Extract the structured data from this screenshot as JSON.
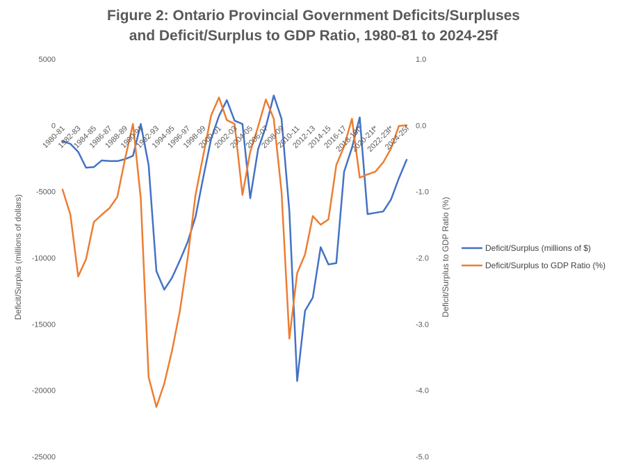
{
  "chart_data": {
    "type": "line",
    "title_line1": "Figure 2: Ontario Provincial Government Deficits/Surpluses",
    "title_line2": "and Deficit/Surplus to GDP Ratio, 1980-81  to 2024-25f",
    "ylabel_left": "Deficit/Surplus (millions of dollars)",
    "ylabel_right": "Deficit/Surplus  to  GDP  Ratio (%)",
    "ylim_left": [
      -25000,
      5000
    ],
    "ylim_right": [
      -5.0,
      1.0
    ],
    "yticks_left": [
      "5000",
      "0",
      "-5000",
      "-10000",
      "-15000",
      "-20000",
      "-25000"
    ],
    "yticks_right": [
      "1.0",
      "0.0",
      "-1.0",
      "-2.0",
      "-3.0",
      "-4.0",
      "-5.0"
    ],
    "x_tick_labels": [
      "1980-81",
      "1982-83",
      "1984-85",
      "1986-87",
      "1988-89",
      "1990-91",
      "1992-93",
      "1994-95",
      "1996-97",
      "1998-99",
      "2000-01",
      "2002-03",
      "2004-05",
      "2006-07",
      "2008-09",
      "2010-11",
      "2012-13",
      "2014-15",
      "2016-17",
      "2018-19f*",
      "2020-21f*",
      "2022-23f*",
      "2024-25f"
    ],
    "categories": [
      "1980-81",
      "1981-82",
      "1982-83",
      "1983-84",
      "1984-85",
      "1985-86",
      "1986-87",
      "1987-88",
      "1988-89",
      "1989-90",
      "1990-91",
      "1991-92",
      "1992-93",
      "1993-94",
      "1994-95",
      "1995-96",
      "1996-97",
      "1997-98",
      "1998-99",
      "1999-00",
      "2000-01",
      "2001-02",
      "2002-03",
      "2003-04",
      "2004-05",
      "2005-06",
      "2006-07",
      "2007-08",
      "2008-09",
      "2009-10",
      "2010-11",
      "2011-12",
      "2012-13",
      "2013-14",
      "2014-15",
      "2015-16",
      "2016-17",
      "2017-18",
      "2018-19f*",
      "2019-20f*",
      "2020-21f*",
      "2021-22f*",
      "2022-23f*",
      "2023-24f*",
      "2024-25f"
    ],
    "series": [
      {
        "name": "Deficit/Surplus (millions of $)",
        "axis": "left",
        "color": "#4472C4",
        "values": [
          -1200,
          -1400,
          -2000,
          -3200,
          -3150,
          -2650,
          -2700,
          -2700,
          -2550,
          -2300,
          100,
          -3000,
          -11000,
          -12400,
          -11500,
          -10200,
          -8800,
          -6900,
          -3900,
          -1000,
          700,
          1900,
          350,
          100,
          -5500,
          -1800,
          -100,
          2250,
          500,
          -6500,
          -19300,
          -14000,
          -13000,
          -9200,
          -10500,
          -10400,
          -3500,
          -1700,
          600,
          -6700,
          -6600,
          -6500,
          -5600,
          -4000,
          -2600
        ]
      },
      {
        "name": "Deficit/Surplus to GDP Ratio (%)",
        "axis": "right",
        "color": "#ED7D31",
        "values": [
          -0.97,
          -1.35,
          -2.28,
          -2.02,
          -1.46,
          -1.35,
          -1.25,
          -1.08,
          -0.5,
          0.02,
          -1.1,
          -3.8,
          -4.25,
          -3.9,
          -3.4,
          -2.8,
          -2.0,
          -1.05,
          -0.45,
          0.15,
          0.42,
          0.08,
          0.02,
          -1.05,
          -0.4,
          -0.02,
          0.39,
          0.1,
          -1.0,
          -3.22,
          -2.23,
          -1.95,
          -1.37,
          -1.5,
          -1.42,
          -0.6,
          -0.32,
          0.1,
          -0.79,
          -0.74,
          -0.7,
          -0.56,
          -0.35,
          -0.01,
          0.0
        ]
      }
    ],
    "legend_position": "right",
    "grid": false
  },
  "colors": {
    "title": "#595959",
    "axis_text": "#595959",
    "series1": "#4472C4",
    "series2": "#ED7D31"
  }
}
